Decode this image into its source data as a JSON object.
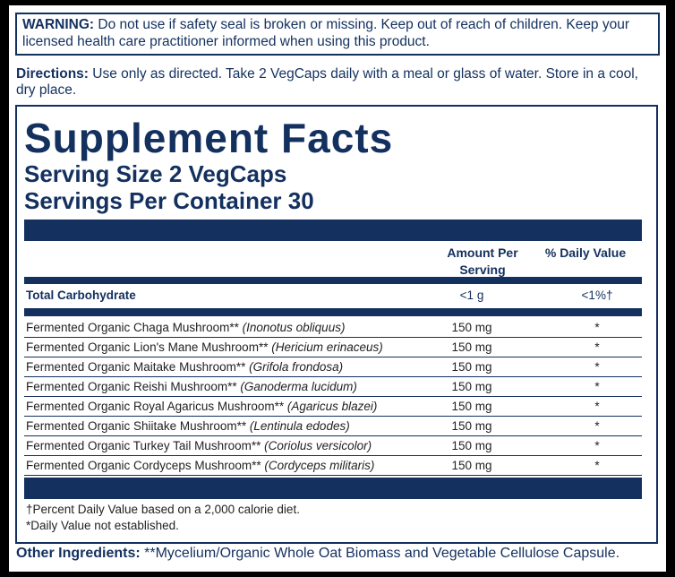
{
  "warning": {
    "label": "WARNING:",
    "text": "Do not use if safety seal is broken or missing. Keep out of reach of children. Keep your licensed health care practitioner informed when using this product."
  },
  "directions": {
    "label": "Directions:",
    "text": "Use only as directed. Take 2 VegCaps daily with a meal or glass of water. Store in a cool, dry place."
  },
  "facts": {
    "title": "Supplement Facts",
    "serving_size": "Serving Size 2 VegCaps",
    "servings_per_container": "Servings Per Container 30",
    "header": {
      "amount": "Amount Per Serving",
      "daily_value": "% Daily Value"
    },
    "total": {
      "name": "Total Carbohydrate",
      "amount": "<1 g",
      "daily_value": "<1%†"
    },
    "rows": [
      {
        "name": "Fermented Organic Chaga Mushroom**",
        "latin": "(Inonotus obliquus)",
        "amount": "150 mg",
        "daily_value": "*"
      },
      {
        "name": "Fermented Organic Lion's Mane Mushroom**",
        "latin": "(Hericium erinaceus)",
        "amount": "150 mg",
        "daily_value": "*"
      },
      {
        "name": "Fermented Organic Maitake Mushroom**",
        "latin": "(Grifola frondosa)",
        "amount": "150 mg",
        "daily_value": "*"
      },
      {
        "name": "Fermented Organic Reishi Mushroom**",
        "latin": "(Ganoderma lucidum)",
        "amount": "150 mg",
        "daily_value": "*"
      },
      {
        "name": "Fermented Organic Royal Agaricus Mushroom**",
        "latin": "(Agaricus blazei)",
        "amount": "150 mg",
        "daily_value": "*"
      },
      {
        "name": "Fermented Organic Shiitake Mushroom**",
        "latin": "(Lentinula edodes)",
        "amount": "150 mg",
        "daily_value": "*"
      },
      {
        "name": "Fermented Organic Turkey Tail Mushroom**",
        "latin": "(Coriolus versicolor)",
        "amount": "150 mg",
        "daily_value": "*"
      },
      {
        "name": "Fermented Organic Cordyceps Mushroom**",
        "latin": "(Cordyceps militaris)",
        "amount": "150 mg",
        "daily_value": "*"
      }
    ],
    "footnotes": [
      "†Percent Daily Value based on a 2,000 calorie diet.",
      "*Daily Value not established."
    ]
  },
  "other_ingredients": {
    "label": "Other Ingredients:",
    "text": "**Mycelium/Organic Whole Oat Biomass and Vegetable Cellulose Capsule."
  }
}
